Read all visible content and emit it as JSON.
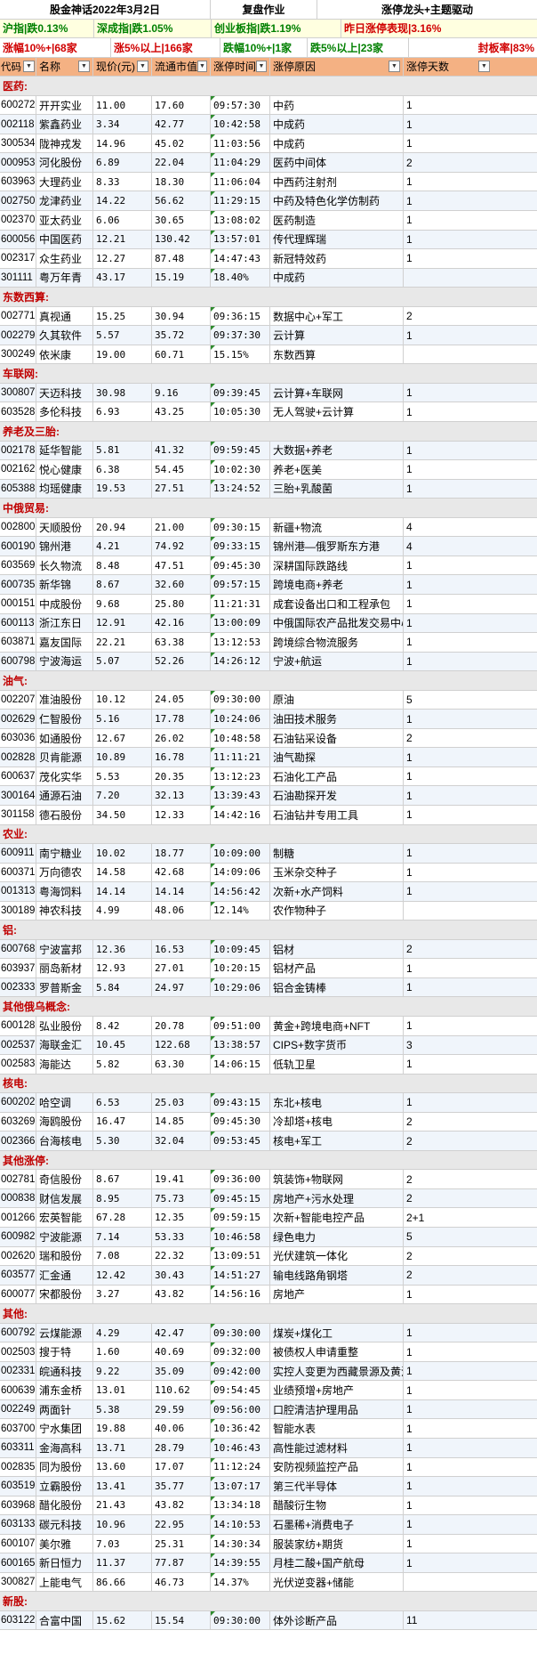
{
  "header": {
    "title": "股金神话2022年3月2日",
    "subtitle": "复盘作业",
    "topic": "涨停龙头+主题驱动"
  },
  "indices": {
    "sh": "沪指|跌0.13%",
    "sz": "深成指|跌1.05%",
    "cy": "创业板指|跌1.19%",
    "perf": "昨日涨停表现|3.16%"
  },
  "stats": {
    "up10": "涨幅10%+|68家",
    "up5": "涨5%以上|166家",
    "down10": "跌幅10%+|1家",
    "down5": "跌5%以上|23家",
    "seal": "封板率|83%"
  },
  "columns": [
    "代码",
    "名称",
    "现价(元)",
    "流通市值",
    "涨停时间",
    "涨停原因",
    "涨停天数"
  ],
  "sections": [
    {
      "name": "医药:",
      "rows": [
        [
          "600272",
          "开开实业",
          "11.00",
          "17.60",
          "09:57:30",
          "中药",
          "1"
        ],
        [
          "002118",
          "紫鑫药业",
          "3.34",
          "42.77",
          "10:42:58",
          "中成药",
          "1"
        ],
        [
          "300534",
          "陇神戎发",
          "14.96",
          "45.02",
          "11:03:56",
          "中成药",
          "1"
        ],
        [
          "000953",
          "河化股份",
          "6.89",
          "22.04",
          "11:04:29",
          "医药中间体",
          "2"
        ],
        [
          "603963",
          "大理药业",
          "8.33",
          "18.30",
          "11:06:04",
          "中西药注射剂",
          "1"
        ],
        [
          "002750",
          "龙津药业",
          "14.22",
          "56.62",
          "11:29:15",
          "中药及特色化学仿制药",
          "1"
        ],
        [
          "002370",
          "亚太药业",
          "6.06",
          "30.65",
          "13:08:02",
          "医药制造",
          "1"
        ],
        [
          "600056",
          "中国医药",
          "12.21",
          "130.42",
          "13:57:01",
          "传代理辉瑞",
          "1"
        ],
        [
          "002317",
          "众生药业",
          "12.27",
          "87.48",
          "14:47:43",
          "新冠特效药",
          "1"
        ],
        [
          "301111",
          "粤万年青",
          "43.17",
          "15.19",
          "18.40%",
          "中成药",
          ""
        ]
      ]
    },
    {
      "name": "东数西算:",
      "rows": [
        [
          "002771",
          "真视通",
          "15.25",
          "30.94",
          "09:36:15",
          "数据中心+军工",
          "2"
        ],
        [
          "002279",
          "久其软件",
          "5.57",
          "35.72",
          "09:37:30",
          "云计算",
          "1"
        ],
        [
          "300249",
          "依米康",
          "19.00",
          "60.71",
          "15.15%",
          "东数西算",
          ""
        ]
      ]
    },
    {
      "name": "车联网:",
      "rows": [
        [
          "300807",
          "天迈科技",
          "30.98",
          "9.16",
          "09:39:45",
          "云计算+车联网",
          "1"
        ],
        [
          "603528",
          "多伦科技",
          "6.93",
          "43.25",
          "10:05:30",
          "无人驾驶+云计算",
          "1"
        ]
      ]
    },
    {
      "name": "养老及三胎:",
      "rows": [
        [
          "002178",
          "延华智能",
          "5.81",
          "41.32",
          "09:59:45",
          "大数据+养老",
          "1"
        ],
        [
          "002162",
          "悦心健康",
          "6.38",
          "54.45",
          "10:02:30",
          "养老+医美",
          "1"
        ],
        [
          "605388",
          "均瑶健康",
          "19.53",
          "27.51",
          "13:24:52",
          "三胎+乳酸菌",
          "1"
        ]
      ]
    },
    {
      "name": "中俄贸易:",
      "rows": [
        [
          "002800",
          "天顺股份",
          "20.94",
          "21.00",
          "09:30:15",
          "新疆+物流",
          "4"
        ],
        [
          "600190",
          "锦州港",
          "4.21",
          "74.92",
          "09:33:15",
          "锦州港—俄罗斯东方港",
          "4"
        ],
        [
          "603569",
          "长久物流",
          "8.48",
          "47.51",
          "09:45:30",
          "深耕国际跌路线",
          "1"
        ],
        [
          "600735",
          "新华锦",
          "8.67",
          "32.60",
          "09:57:15",
          "跨境电商+养老",
          "1"
        ],
        [
          "000151",
          "中成股份",
          "9.68",
          "25.80",
          "11:21:31",
          "成套设备出口和工程承包",
          "1"
        ],
        [
          "600113",
          "浙江东日",
          "12.91",
          "42.16",
          "13:00:09",
          "中俄国际农产品批发交易中心",
          "1"
        ],
        [
          "603871",
          "嘉友国际",
          "22.21",
          "63.38",
          "13:12:53",
          "跨境综合物流服务",
          "1"
        ],
        [
          "600798",
          "宁波海运",
          "5.07",
          "52.26",
          "14:26:12",
          "宁波+航运",
          "1"
        ]
      ]
    },
    {
      "name": "油气:",
      "rows": [
        [
          "002207",
          "准油股份",
          "10.12",
          "24.05",
          "09:30:00",
          "原油",
          "5"
        ],
        [
          "002629",
          "仁智股份",
          "5.16",
          "17.78",
          "10:24:06",
          "油田技术服务",
          "1"
        ],
        [
          "603036",
          "如通股份",
          "12.67",
          "26.02",
          "10:48:58",
          "石油钻采设备",
          "2"
        ],
        [
          "002828",
          "贝肯能源",
          "10.89",
          "16.78",
          "11:11:21",
          "油气勘探",
          "1"
        ],
        [
          "600637",
          "茂化实华",
          "5.53",
          "20.35",
          "13:12:23",
          "石油化工产品",
          "1"
        ],
        [
          "300164",
          "通源石油",
          "7.20",
          "32.13",
          "13:39:43",
          "石油勘探开发",
          "1"
        ],
        [
          "301158",
          "德石股份",
          "34.50",
          "12.33",
          "14:42:16",
          "石油钻井专用工具",
          "1"
        ]
      ]
    },
    {
      "name": "农业:",
      "rows": [
        [
          "600911",
          "南宁糖业",
          "10.02",
          "18.77",
          "10:09:00",
          "制糖",
          "1"
        ],
        [
          "600371",
          "万向德农",
          "14.58",
          "42.68",
          "14:09:06",
          "玉米杂交种子",
          "1"
        ],
        [
          "001313",
          "粤海饲料",
          "14.14",
          "14.14",
          "14:56:42",
          "次新+水产饲料",
          "1"
        ],
        [
          "300189",
          "神农科技",
          "4.99",
          "48.06",
          "12.14%",
          "农作物种子",
          ""
        ]
      ]
    },
    {
      "name": "铝:",
      "rows": [
        [
          "600768",
          "宁波富邦",
          "12.36",
          "16.53",
          "10:09:45",
          "铝材",
          "2"
        ],
        [
          "603937",
          "丽岛新材",
          "12.93",
          "27.01",
          "10:20:15",
          "铝材产品",
          "1"
        ],
        [
          "002333",
          "罗普斯金",
          "5.84",
          "24.97",
          "10:29:06",
          "铝合金铸棒",
          "1"
        ]
      ]
    },
    {
      "name": "其他俄乌概念:",
      "rows": [
        [
          "600128",
          "弘业股份",
          "8.42",
          "20.78",
          "09:51:00",
          "黄金+跨境电商+NFT",
          "1"
        ],
        [
          "002537",
          "海联金汇",
          "10.45",
          "122.68",
          "13:38:57",
          "CIPS+数字货币",
          "3"
        ],
        [
          "002583",
          "海能达",
          "5.82",
          "63.30",
          "14:06:15",
          "低轨卫星",
          "1"
        ]
      ]
    },
    {
      "name": "核电:",
      "rows": [
        [
          "600202",
          "哈空调",
          "6.53",
          "25.03",
          "09:43:15",
          "东北+核电",
          "1"
        ],
        [
          "603269",
          "海鸥股份",
          "16.47",
          "14.85",
          "09:45:30",
          "冷却塔+核电",
          "2"
        ],
        [
          "002366",
          "台海核电",
          "5.30",
          "32.04",
          "09:53:45",
          "核电+军工",
          "2"
        ]
      ]
    },
    {
      "name": "其他涨停:",
      "rows": [
        [
          "002781",
          "奇信股份",
          "8.67",
          "19.41",
          "09:36:00",
          "筑装饰+物联网",
          "2"
        ],
        [
          "000838",
          "财信发展",
          "8.95",
          "75.73",
          "09:45:15",
          "房地产+污水处理",
          "2"
        ],
        [
          "001266",
          "宏英智能",
          "67.28",
          "12.35",
          "09:59:15",
          "次新+智能电控产品",
          "2+1"
        ],
        [
          "600982",
          "宁波能源",
          "7.14",
          "53.33",
          "10:46:58",
          "绿色电力",
          "5"
        ],
        [
          "002620",
          "瑞和股份",
          "7.08",
          "22.32",
          "13:09:51",
          "光伏建筑一体化",
          "2"
        ],
        [
          "603577",
          "汇金通",
          "12.42",
          "30.43",
          "14:51:27",
          "输电线路角钢塔",
          "2"
        ],
        [
          "600077",
          "宋都股份",
          "3.27",
          "43.82",
          "14:56:16",
          "房地产",
          "1"
        ]
      ]
    },
    {
      "name": "其他:",
      "rows": [
        [
          "600792",
          "云煤能源",
          "4.29",
          "42.47",
          "09:30:00",
          "煤炭+煤化工",
          "1"
        ],
        [
          "002503",
          "搜于特",
          "1.60",
          "40.69",
          "09:32:00",
          "被债权人申请重整",
          "1"
        ],
        [
          "002331",
          "皖通科技",
          "9.22",
          "35.09",
          "09:42:00",
          "实控人变更为西藏景源及黄涛",
          "1"
        ],
        [
          "600639",
          "浦东金桥",
          "13.01",
          "110.62",
          "09:54:45",
          "业绩预增+房地产",
          "1"
        ],
        [
          "002249",
          "两面针",
          "5.38",
          "29.59",
          "09:56:00",
          "口腔清洁护理用品",
          "1"
        ],
        [
          "603700",
          "宁水集团",
          "19.88",
          "40.06",
          "10:36:42",
          "智能水表",
          "1"
        ],
        [
          "603311",
          "金海高科",
          "13.71",
          "28.79",
          "10:46:43",
          "高性能过滤材料",
          "1"
        ],
        [
          "002835",
          "同为股份",
          "13.60",
          "17.07",
          "11:12:24",
          "安防视频监控产品",
          "1"
        ],
        [
          "603519",
          "立霸股份",
          "13.41",
          "35.77",
          "13:07:17",
          "第三代半导体",
          "1"
        ],
        [
          "603968",
          "醋化股份",
          "21.43",
          "43.82",
          "13:34:18",
          "醋酸衍生物",
          "1"
        ],
        [
          "603133",
          "碳元科技",
          "10.96",
          "22.95",
          "14:10:53",
          "石墨稀+消费电子",
          "1"
        ],
        [
          "600107",
          "美尔雅",
          "7.03",
          "25.31",
          "14:30:34",
          "服装家纺+期货",
          "1"
        ],
        [
          "600165",
          "新日恒力",
          "11.37",
          "77.87",
          "14:39:55",
          "月桂二酸+国产航母",
          "1"
        ],
        [
          "300827",
          "上能电气",
          "86.66",
          "46.73",
          "14.37%",
          "光伏逆变器+储能",
          ""
        ]
      ]
    },
    {
      "name": "新股:",
      "rows": [
        [
          "603122",
          "合富中国",
          "15.62",
          "15.54",
          "09:30:00",
          "体外诊断产品",
          "11"
        ]
      ]
    }
  ]
}
